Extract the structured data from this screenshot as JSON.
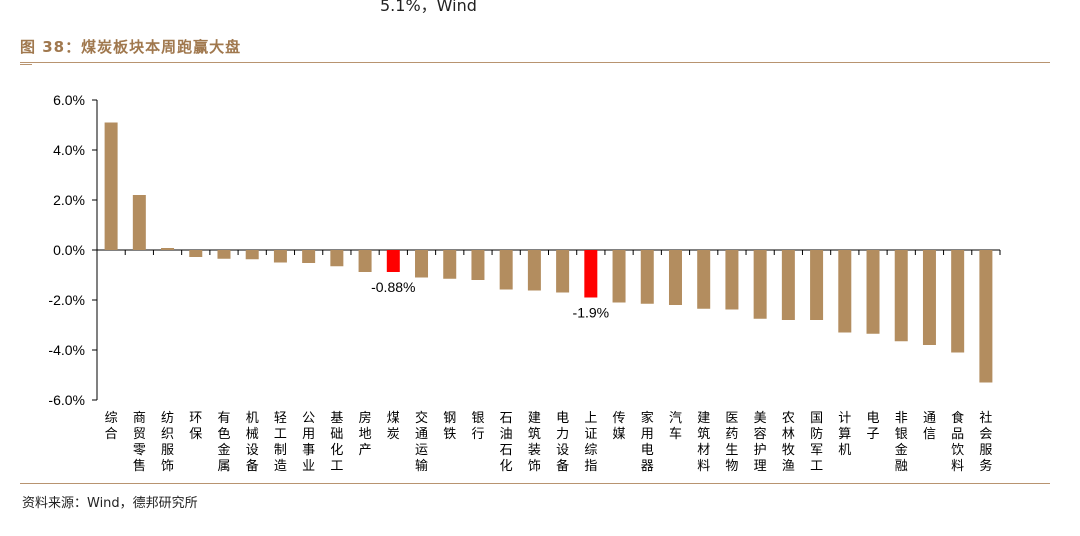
{
  "header_fragment": "5.1%，Wind",
  "figure": {
    "title": "图 38：煤炭板块本周跑赢大盘",
    "source": "资料来源：Wind，德邦研究所"
  },
  "colors": {
    "bar": "#b38d5f",
    "highlight": "#ff0000",
    "accent": "#a0784e",
    "rule": "#b89470"
  },
  "chart_data": {
    "type": "bar",
    "title": "",
    "xlabel": "",
    "ylabel": "",
    "ylim": [
      -6.0,
      6.0
    ],
    "yticks": [
      "6.0%",
      "4.0%",
      "2.0%",
      "0.0%",
      "-2.0%",
      "-4.0%",
      "-6.0%"
    ],
    "ytick_values": [
      6,
      4,
      2,
      0,
      -2,
      -4,
      -6
    ],
    "categories": [
      "综合",
      "商贸零售",
      "纺织服饰",
      "环保",
      "有色金属",
      "机械设备",
      "轻工制造",
      "公用事业",
      "基础化工",
      "房地产",
      "煤炭",
      "交通运输",
      "钢铁",
      "银行",
      "石油石化",
      "建筑装饰",
      "电力设备",
      "上证综指",
      "传媒",
      "家用电器",
      "汽车",
      "建筑材料",
      "医药生物",
      "美容护理",
      "农林牧渔",
      "国防军工",
      "计算机",
      "电子",
      "非银金融",
      "通信",
      "食品饮料",
      "社会服务"
    ],
    "values": [
      5.1,
      2.2,
      0.08,
      -0.28,
      -0.35,
      -0.37,
      -0.5,
      -0.52,
      -0.65,
      -0.88,
      -0.88,
      -1.1,
      -1.15,
      -1.2,
      -1.58,
      -1.62,
      -1.7,
      -1.9,
      -2.1,
      -2.15,
      -2.2,
      -2.35,
      -2.38,
      -2.75,
      -2.8,
      -2.8,
      -3.3,
      -3.35,
      -3.65,
      -3.8,
      -4.1,
      -5.3
    ],
    "highlighted": [
      "煤炭",
      "上证综指"
    ],
    "data_labels": [
      {
        "category": "煤炭",
        "text": "-0.88%"
      },
      {
        "category": "上证综指",
        "text": "-1.9%"
      }
    ],
    "grid": false,
    "legend": "none"
  }
}
